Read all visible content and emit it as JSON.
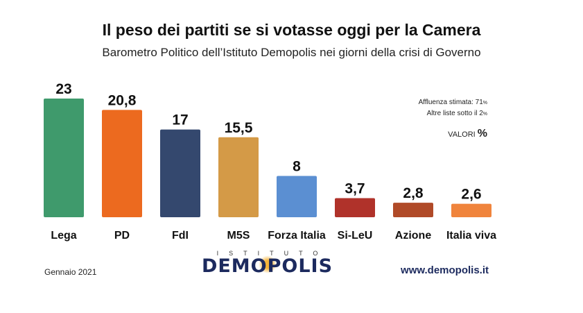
{
  "header": {
    "title": "Il peso dei partiti se si votasse oggi per la Camera",
    "subtitle": "Barometro Politico dell’Istituto Demopolis nei giorni della crisi di Governo"
  },
  "notes": {
    "affluenza_label": "Affluenza stimata: 71",
    "affluenza_unit": "%",
    "altre_label": "Altre liste sotto il 2",
    "altre_unit": "%",
    "valori_label": "VALORI",
    "valori_unit": "%"
  },
  "chart_data": {
    "type": "bar",
    "categories": [
      "Lega",
      "PD",
      "FdI",
      "M5S",
      "Forza Italia",
      "Si-LeU",
      "Azione",
      "Italia viva"
    ],
    "values": [
      23,
      20.8,
      17,
      15.5,
      8,
      3.7,
      2.8,
      2.6
    ],
    "value_labels": [
      "23",
      "20,8",
      "17",
      "15,5",
      "8",
      "3,7",
      "2,8",
      "2,6"
    ],
    "colors": [
      "#3f9a6c",
      "#ec6a1f",
      "#34486e",
      "#d49a47",
      "#5b8fd2",
      "#b0322a",
      "#b04a28",
      "#f0843c"
    ],
    "title": "Il peso dei partiti se si votasse oggi per la Camera",
    "xlabel": "",
    "ylabel": "",
    "ylim": [
      0,
      23
    ],
    "grid": false,
    "legend": "none"
  },
  "footer": {
    "date": "Gennaio 2021",
    "logo_top": "ISTITUTO",
    "logo_main": "DEMOPOLIS",
    "url": "www.demopolis.it"
  }
}
